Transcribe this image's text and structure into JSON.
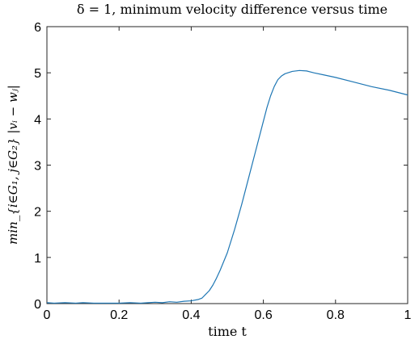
{
  "chart_data": {
    "type": "line",
    "title": "δ = 1, minimum velocity difference versus time",
    "xlabel": "time t",
    "ylabel": "min_{i∈G₁, j∈G₂} |vᵢ − wⱼ|",
    "xlim": [
      0,
      1
    ],
    "ylim": [
      0,
      6
    ],
    "xticks": [
      "0",
      "0.2",
      "0.4",
      "0.6",
      "0.8",
      "1"
    ],
    "yticks": [
      "0",
      "1",
      "2",
      "3",
      "4",
      "5",
      "6"
    ],
    "grid": false,
    "series": [
      {
        "color": "#1f77b4",
        "x": [
          0,
          0.02,
          0.05,
          0.08,
          0.1,
          0.13,
          0.16,
          0.2,
          0.23,
          0.26,
          0.28,
          0.3,
          0.32,
          0.34,
          0.36,
          0.38,
          0.4,
          0.42,
          0.43,
          0.44,
          0.45,
          0.46,
          0.47,
          0.48,
          0.5,
          0.52,
          0.54,
          0.56,
          0.58,
          0.6,
          0.61,
          0.62,
          0.63,
          0.64,
          0.65,
          0.66,
          0.68,
          0.7,
          0.72,
          0.74,
          0.77,
          0.8,
          0.85,
          0.9,
          0.95,
          1.0
        ],
        "y": [
          0.02,
          0.01,
          0.02,
          0.01,
          0.02,
          0.01,
          0.01,
          0.01,
          0.02,
          0.01,
          0.02,
          0.03,
          0.02,
          0.04,
          0.03,
          0.05,
          0.06,
          0.09,
          0.12,
          0.2,
          0.28,
          0.4,
          0.55,
          0.72,
          1.1,
          1.6,
          2.15,
          2.75,
          3.35,
          3.95,
          4.25,
          4.5,
          4.7,
          4.85,
          4.93,
          4.98,
          5.03,
          5.05,
          5.04,
          5.0,
          4.95,
          4.9,
          4.8,
          4.7,
          4.62,
          4.52
        ]
      }
    ]
  }
}
